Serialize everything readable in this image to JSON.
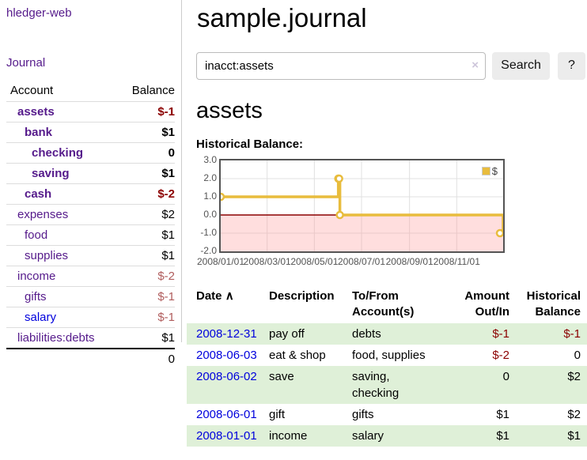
{
  "sidebar": {
    "app_title": "hledger-web",
    "journal_label": "Journal",
    "accounts": {
      "header_account": "Account",
      "header_balance": "Balance",
      "rows": [
        {
          "name": "assets",
          "balance": "$-1",
          "level": 0,
          "bold": true
        },
        {
          "name": "bank",
          "balance": "$1",
          "level": 1,
          "bold": true
        },
        {
          "name": "checking",
          "balance": "0",
          "level": 2,
          "bold": true
        },
        {
          "name": "saving",
          "balance": "$1",
          "level": 2,
          "bold": true
        },
        {
          "name": "cash",
          "balance": "$-2",
          "level": 1,
          "bold": true
        },
        {
          "name": "expenses",
          "balance": "$2",
          "level": 0,
          "bold": false
        },
        {
          "name": "food",
          "balance": "$1",
          "level": 1,
          "bold": false
        },
        {
          "name": "supplies",
          "balance": "$1",
          "level": 1,
          "bold": false
        },
        {
          "name": "income",
          "balance": "$-2",
          "level": 0,
          "bold": false
        },
        {
          "name": "gifts",
          "balance": "$-1",
          "level": 1,
          "bold": false
        },
        {
          "name": "salary",
          "balance": "$-1",
          "level": 1,
          "bold": false,
          "unvisited": true
        },
        {
          "name": "liabilities:debts",
          "balance": "$1",
          "level": 0,
          "bold": false
        }
      ],
      "total": "0"
    }
  },
  "main": {
    "page_title": "sample.journal",
    "search": {
      "value": "inacct:assets",
      "clear_icon": "×",
      "button_label": "Search",
      "help_label": "?"
    },
    "account_heading": "assets"
  },
  "chart_data": {
    "type": "line",
    "title": "Historical Balance:",
    "step": true,
    "xlim": [
      "2008-01-01",
      "2008-12-31"
    ],
    "ylim": [
      -2,
      3
    ],
    "y_ticks": [
      "3.0",
      "2.0",
      "1.0",
      "0.0",
      "-1.0",
      "-2.0"
    ],
    "x_ticks": [
      "2008/01/01",
      "2008/03/01",
      "2008/05/01",
      "2008/07/01",
      "2008/09/01",
      "2008/11/01"
    ],
    "series": [
      {
        "name": "$",
        "color": "#e8bc3d",
        "points": [
          {
            "date": "2008-01-01",
            "value": 1
          },
          {
            "date": "2008-06-01",
            "value": 2
          },
          {
            "date": "2008-06-02",
            "value": 2
          },
          {
            "date": "2008-06-03",
            "value": 0
          },
          {
            "date": "2008-12-31",
            "value": -1
          }
        ]
      }
    ],
    "negative_region_color": "#ff9999",
    "zero_line_color": "#8b0000",
    "grid_color": "#e0e0e0",
    "legend": {
      "label": "$",
      "position": "top-right"
    }
  },
  "register_table": {
    "headers": {
      "date": "Date",
      "sort_icon": "∧",
      "description": "Description",
      "accounts": "To/From\nAccount(s)",
      "amount": "Amount\nOut/In",
      "balance": "Historical\nBalance"
    },
    "rows": [
      {
        "date": "2008-12-31",
        "description": "pay off",
        "accounts": "debts",
        "amount": "$-1",
        "balance": "$-1"
      },
      {
        "date": "2008-06-03",
        "description": "eat & shop",
        "accounts": "food, supplies",
        "amount": "$-2",
        "balance": "0"
      },
      {
        "date": "2008-06-02",
        "description": "save",
        "accounts": "saving,\nchecking",
        "amount": "0",
        "balance": "$2"
      },
      {
        "date": "2008-06-01",
        "description": "gift",
        "accounts": "gifts",
        "amount": "$1",
        "balance": "$2"
      },
      {
        "date": "2008-01-01",
        "description": "income",
        "accounts": "salary",
        "amount": "$1",
        "balance": "$1"
      }
    ]
  }
}
